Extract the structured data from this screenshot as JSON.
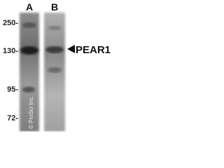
{
  "lanes": [
    "A",
    "B"
  ],
  "markers": [
    "250-",
    "130-",
    "95-",
    "72-"
  ],
  "target": "PEAR1",
  "watermark": "© ProSci Inc."
}
